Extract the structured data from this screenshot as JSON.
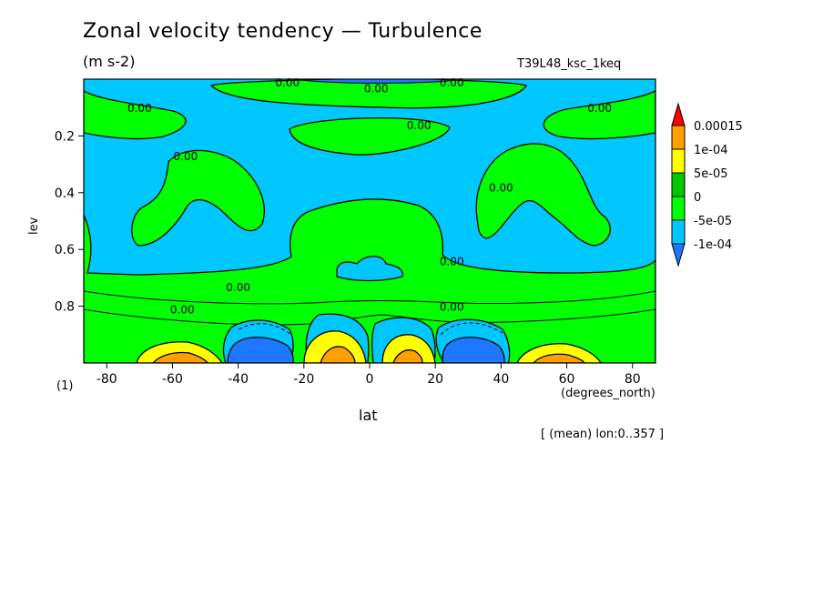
{
  "chart_data": {
    "type": "contour",
    "title": "Zonal velocity tendency — Turbulence",
    "units": "(m s-2)",
    "experiment": "T39L48_ksc_1keq",
    "xlabel": "lat",
    "xunits": "(degrees_north)",
    "ylabel": "lev",
    "yunits": "(1)",
    "averaging_note": "[ (mean) lon:0..357 ]",
    "xlim": [
      -87,
      87
    ],
    "ylim": [
      1.0,
      0.0
    ],
    "x_ticks": [
      -80,
      -60,
      -40,
      -20,
      0,
      20,
      40,
      60,
      80
    ],
    "y_ticks": [
      0.2,
      0.4,
      0.6,
      0.8
    ],
    "colorbar": {
      "labels": [
        "0.00015",
        "1e-04",
        "5e-05",
        "0",
        "-5e-05",
        "-1e-04"
      ],
      "levels": [
        -0.0001,
        -5e-05,
        0,
        5e-05,
        0.0001,
        0.00015
      ],
      "colors": [
        "#1e78ff",
        "#00c8ff",
        "#00ff00",
        "#00c800",
        "#ffff00",
        "#ffa000",
        "#ff0000"
      ]
    },
    "contour_labels": [
      {
        "text": "0.00",
        "lat": -25,
        "lev": 0.01
      },
      {
        "text": "0.00",
        "lat": 2,
        "lev": 0.03
      },
      {
        "text": "0.00",
        "lat": 25,
        "lev": 0.01
      },
      {
        "text": "0.00",
        "lat": -70,
        "lev": 0.1
      },
      {
        "text": "0.00",
        "lat": 70,
        "lev": 0.1
      },
      {
        "text": "0.00",
        "lat": 15,
        "lev": 0.16
      },
      {
        "text": "0.00",
        "lat": -56,
        "lev": 0.27
      },
      {
        "text": "0.00",
        "lat": 40,
        "lev": 0.38
      },
      {
        "text": "0.00",
        "lat": 25,
        "lev": 0.64
      },
      {
        "text": "0.00",
        "lat": -40,
        "lev": 0.73
      },
      {
        "text": "0.00",
        "lat": 25,
        "lev": 0.8
      },
      {
        "text": "0.00",
        "lat": -57,
        "lev": 0.81
      }
    ]
  }
}
